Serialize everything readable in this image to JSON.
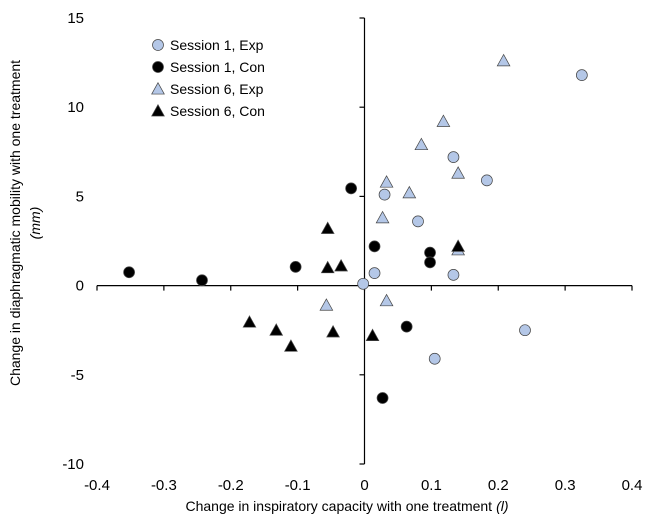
{
  "chart_data": {
    "type": "scatter",
    "xlabel": "Change in inspiratory capacity with one treatment",
    "xlabel_unit": "(l)",
    "ylabel": "Change in diaphragmatic mobility with one treatment",
    "ylabel_unit": "(mm)",
    "xlim": [
      -0.4,
      0.4
    ],
    "ylim": [
      -10,
      15
    ],
    "xticks": [
      "-0.4",
      "-0.3",
      "-0.2",
      "-0.1",
      "0",
      "0.1",
      "0.2",
      "0.3",
      "0.4"
    ],
    "yticks": [
      "-10",
      "-5",
      "0",
      "5",
      "10",
      "15"
    ],
    "grid": false,
    "legend_position": "top-left",
    "series": [
      {
        "name": "Session 1, Exp",
        "marker": "circle",
        "color": "#b4c7e7",
        "points": [
          [
            -0.002,
            0.1
          ],
          [
            0.015,
            0.7
          ],
          [
            0.03,
            5.1
          ],
          [
            0.08,
            3.6
          ],
          [
            0.133,
            7.2
          ],
          [
            0.133,
            0.6
          ],
          [
            0.183,
            5.9
          ],
          [
            0.325,
            11.8
          ],
          [
            0.24,
            -2.5
          ],
          [
            0.105,
            -4.1
          ]
        ]
      },
      {
        "name": "Session 1, Con",
        "marker": "circle",
        "color": "#000000",
        "points": [
          [
            -0.352,
            0.75
          ],
          [
            -0.243,
            0.3
          ],
          [
            -0.103,
            1.05
          ],
          [
            -0.02,
            5.45
          ],
          [
            0.015,
            2.2
          ],
          [
            0.098,
            1.85
          ],
          [
            0.098,
            1.3
          ],
          [
            0.063,
            -2.3
          ],
          [
            0.027,
            -6.3
          ]
        ]
      },
      {
        "name": "Session 6, Exp",
        "marker": "triangle",
        "color": "#b4c7e7",
        "points": [
          [
            0.208,
            12.6
          ],
          [
            0.118,
            9.2
          ],
          [
            0.085,
            7.9
          ],
          [
            0.14,
            6.3
          ],
          [
            0.033,
            5.8
          ],
          [
            0.067,
            5.2
          ],
          [
            0.027,
            3.8
          ],
          [
            0.14,
            2.0
          ],
          [
            -0.057,
            -1.1
          ],
          [
            0.033,
            -0.85
          ]
        ]
      },
      {
        "name": "Session 6, Con",
        "marker": "triangle",
        "color": "#000000",
        "points": [
          [
            -0.055,
            3.2
          ],
          [
            -0.055,
            1.0
          ],
          [
            -0.035,
            1.1
          ],
          [
            0.14,
            2.2
          ],
          [
            -0.172,
            -2.05
          ],
          [
            -0.132,
            -2.5
          ],
          [
            -0.047,
            -2.6
          ],
          [
            -0.11,
            -3.4
          ],
          [
            0.012,
            -2.8
          ]
        ]
      }
    ]
  }
}
